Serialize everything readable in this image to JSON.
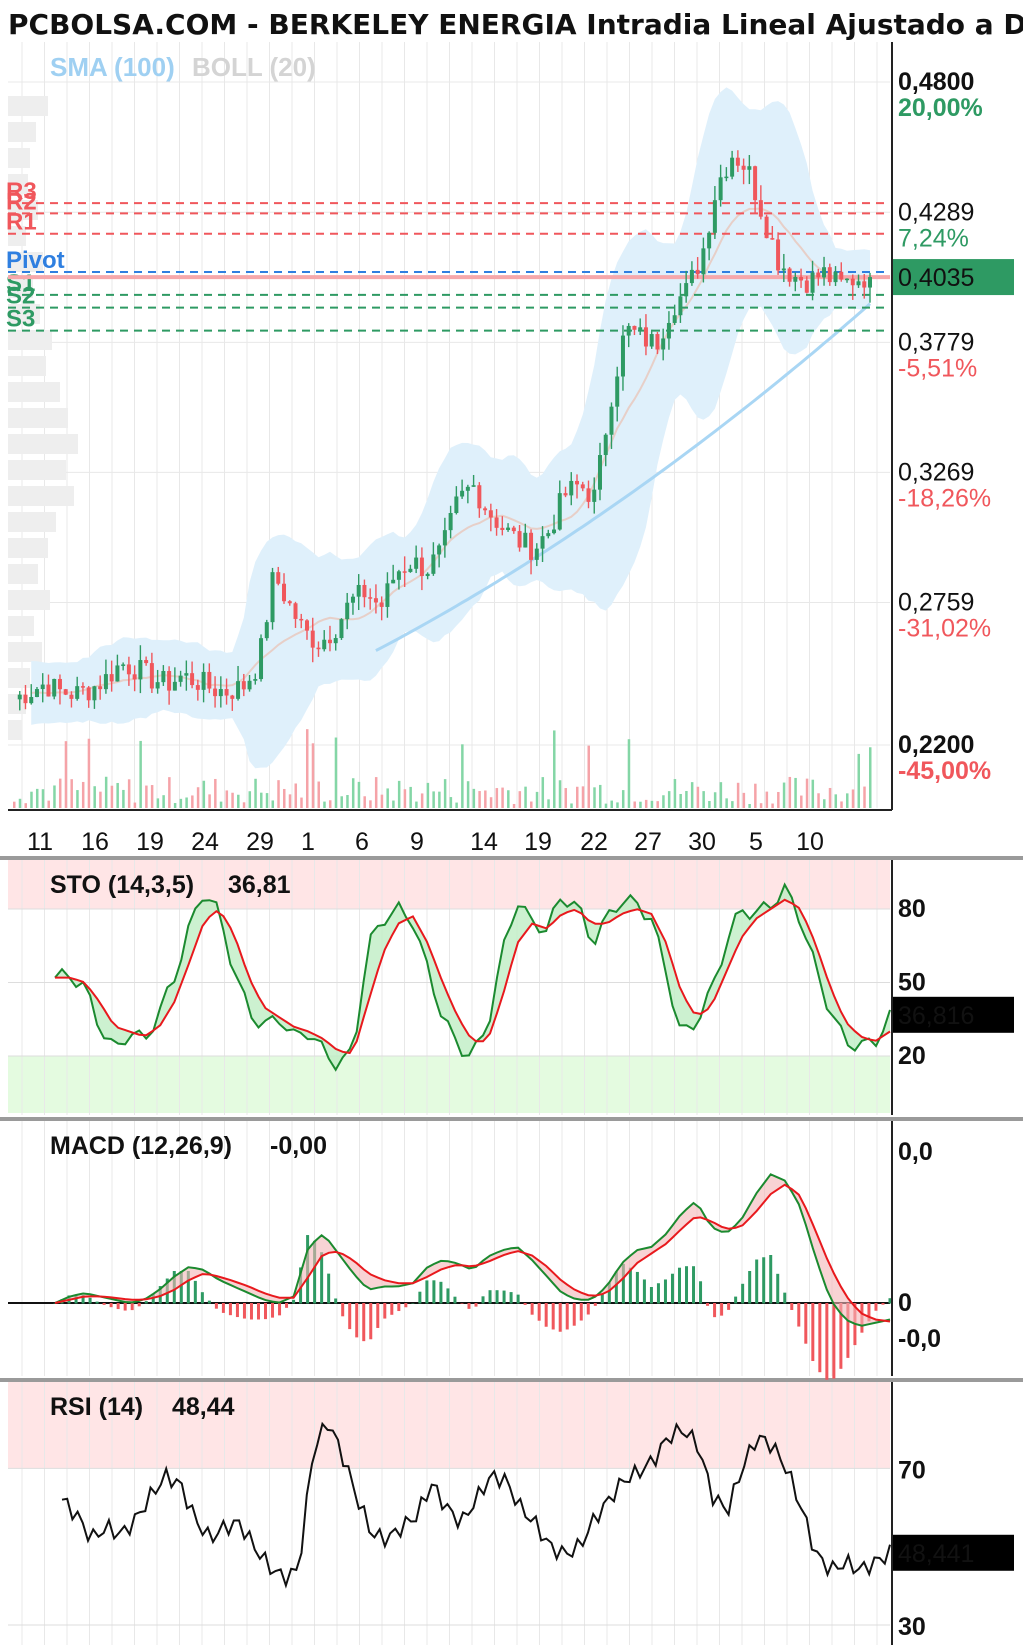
{
  "title": "PCBOLSA.COM - BERKELEY ENERGIA Intradia Lineal Ajustado a Dividendos",
  "overlays": {
    "sma": {
      "label": "SMA (100)",
      "color": "#9fd0f2"
    },
    "boll": {
      "label": "BOLL (20)",
      "color": "#d4d4d4"
    }
  },
  "colors": {
    "up": "#2e9a63",
    "down": "#f0575c",
    "volume_up": "#84d6a6",
    "volume_down": "#f5a3a8",
    "boll_fill": "#dff0fb",
    "boll_mid": "#e7cfc8",
    "sma": "#a9d6f4",
    "last_badge": "#2e9a63",
    "red": "#e8191d",
    "green": "#1b8a2f"
  },
  "price_axis": [
    {
      "price": "0,4800",
      "pct": "20,00%",
      "pct_color": "#2e9a63",
      "bold": true
    },
    {
      "price": "0,4289",
      "pct": "7,24%",
      "pct_color": "#2e9a63",
      "bold": false
    },
    {
      "price": "0,3779",
      "pct": "-5,51%",
      "pct_color": "#f0575c",
      "bold": false
    },
    {
      "price": "0,3269",
      "pct": "-18,26%",
      "pct_color": "#f0575c",
      "bold": false
    },
    {
      "price": "0,2759",
      "pct": "-31,02%",
      "pct_color": "#f0575c",
      "bold": false
    },
    {
      "price": "0,2200",
      "pct": "-45,00%",
      "pct_color": "#f0575c",
      "bold": true
    }
  ],
  "last_price": {
    "label": "0,4035",
    "value": 0.4035
  },
  "pivot_levels": [
    {
      "label": "R3",
      "value": 0.4325,
      "color": "#f0575c"
    },
    {
      "label": "R2",
      "value": 0.4285,
      "color": "#f0575c"
    },
    {
      "label": "R1",
      "value": 0.4205,
      "color": "#f0575c"
    },
    {
      "label": "Pivot",
      "value": 0.4055,
      "color": "#2f7fe0"
    },
    {
      "label": "S1",
      "value": 0.3965,
      "color": "#2e9a63"
    },
    {
      "label": "S2",
      "value": 0.3915,
      "color": "#2e9a63"
    },
    {
      "label": "S3",
      "value": 0.3825,
      "color": "#2e9a63"
    }
  ],
  "date_labels": [
    "11",
    "16",
    "19",
    "24",
    "29",
    "1",
    "6",
    "9",
    "14",
    "19",
    "22",
    "27",
    "30",
    "5",
    "10"
  ],
  "chart_data": [
    {
      "type": "candlestick",
      "title": "PCBOLSA.COM - BERKELEY ENERGIA Intradia Lineal Ajustado a Dividendos",
      "ylim": [
        0.22,
        0.48
      ],
      "x": [
        "11",
        "16",
        "19",
        "24",
        "29",
        "1",
        "6",
        "9",
        "14",
        "19",
        "22",
        "27",
        "30",
        "5",
        "10"
      ],
      "close_path": [
        0.238,
        0.241,
        0.244,
        0.241,
        0.24,
        0.242,
        0.246,
        0.252,
        0.25,
        0.246,
        0.244,
        0.247,
        0.245,
        0.242,
        0.241,
        0.243,
        0.252,
        0.287,
        0.275,
        0.264,
        0.26,
        0.266,
        0.276,
        0.28,
        0.274,
        0.288,
        0.292,
        0.289,
        0.296,
        0.315,
        0.322,
        0.312,
        0.305,
        0.3,
        0.297,
        0.304,
        0.318,
        0.322,
        0.317,
        0.355,
        0.383,
        0.38,
        0.377,
        0.392,
        0.398,
        0.412,
        0.44,
        0.452,
        0.446,
        0.428,
        0.41,
        0.404,
        0.402,
        0.405,
        0.4,
        0.403,
        0.404
      ],
      "last": 0.4035,
      "sma_100_start": 0.242,
      "sma_100_end": 0.378
    },
    {
      "type": "line",
      "title": "STO (14,3,5)",
      "value_label": "36,81",
      "last": 36.816,
      "last_label": "36,816",
      "ylim": [
        0,
        100
      ],
      "levels": [
        80,
        50,
        20
      ],
      "k": [
        52,
        53,
        48,
        32,
        22,
        30,
        26,
        38,
        52,
        72,
        88,
        78,
        55,
        38,
        32,
        36,
        28,
        30,
        22,
        16,
        22,
        65,
        76,
        80,
        75,
        55,
        36,
        24,
        20,
        32,
        62,
        84,
        74,
        72,
        85,
        82,
        66,
        76,
        84,
        82,
        76,
        54,
        28,
        34,
        46,
        66,
        80,
        78,
        82,
        88,
        76,
        56,
        38,
        26,
        24,
        26,
        36
      ],
      "d": [
        52,
        52,
        50,
        42,
        32,
        30,
        28,
        32,
        42,
        58,
        75,
        80,
        70,
        52,
        40,
        36,
        32,
        30,
        27,
        22,
        21,
        42,
        62,
        74,
        77,
        66,
        50,
        36,
        26,
        26,
        44,
        66,
        74,
        72,
        78,
        80,
        74,
        74,
        78,
        80,
        78,
        66,
        46,
        36,
        40,
        54,
        68,
        76,
        80,
        84,
        80,
        66,
        48,
        34,
        28,
        26,
        30
      ],
      "k_color": "#1b8a2f",
      "d_color": "#e8191d",
      "level_labels": [
        "80",
        "50",
        "20"
      ]
    },
    {
      "type": "line",
      "title": "MACD (12,26,9)",
      "value_label": "-0,00",
      "ylim": [
        -0.006,
        0.025
      ],
      "axis_labels": [
        "0,0",
        "0",
        "-0,0"
      ],
      "macd": [
        0.0,
        0.001,
        0.0015,
        0.001,
        0.0005,
        0.0,
        0.0005,
        0.002,
        0.004,
        0.0055,
        0.005,
        0.0035,
        0.0025,
        0.0015,
        0.0005,
        0.0,
        0.001,
        0.0085,
        0.0105,
        0.0075,
        0.0045,
        0.002,
        0.0025,
        0.0025,
        0.003,
        0.0055,
        0.0065,
        0.006,
        0.005,
        0.007,
        0.008,
        0.0085,
        0.0065,
        0.004,
        0.0015,
        0.0005,
        0.0005,
        0.0025,
        0.006,
        0.008,
        0.0085,
        0.0105,
        0.0135,
        0.0155,
        0.0115,
        0.0105,
        0.0125,
        0.0165,
        0.0195,
        0.0185,
        0.0145,
        0.007,
        0.0005,
        -0.0025,
        -0.0035,
        -0.003,
        -0.0025
      ],
      "signal": [
        0.0,
        0.0005,
        0.001,
        0.001,
        0.0008,
        0.0005,
        0.0005,
        0.001,
        0.002,
        0.0035,
        0.0045,
        0.004,
        0.0033,
        0.0025,
        0.0015,
        0.0008,
        0.0008,
        0.004,
        0.0075,
        0.0078,
        0.0065,
        0.0045,
        0.0035,
        0.003,
        0.003,
        0.004,
        0.0052,
        0.0058,
        0.0055,
        0.0062,
        0.0072,
        0.0079,
        0.0072,
        0.0055,
        0.0033,
        0.0018,
        0.001,
        0.0015,
        0.0035,
        0.006,
        0.0075,
        0.009,
        0.0112,
        0.0132,
        0.0124,
        0.0112,
        0.0115,
        0.0138,
        0.0165,
        0.018,
        0.0162,
        0.011,
        0.0055,
        0.0012,
        -0.0015,
        -0.0025,
        -0.0028
      ],
      "macd_color": "#1b8a2f",
      "signal_color": "#e8191d"
    },
    {
      "type": "line",
      "title": "RSI (14)",
      "value_label": "48,44",
      "last": 48.441,
      "last_label": "48,441",
      "ylim": [
        30,
        90
      ],
      "levels": [
        70,
        30
      ],
      "level_labels": [
        "70",
        "30"
      ],
      "values": [
        62,
        58,
        52,
        55,
        53,
        57,
        63,
        68,
        66,
        57,
        52,
        55,
        56,
        50,
        45,
        42,
        44,
        75,
        82,
        73,
        62,
        53,
        52,
        55,
        58,
        66,
        60,
        56,
        62,
        68,
        67,
        60,
        56,
        50,
        48,
        50,
        57,
        62,
        67,
        69,
        72,
        78,
        80,
        76,
        63,
        59,
        70,
        78,
        76,
        70,
        60,
        48,
        44,
        46,
        44,
        46,
        48.4
      ],
      "color": "#111111"
    }
  ]
}
